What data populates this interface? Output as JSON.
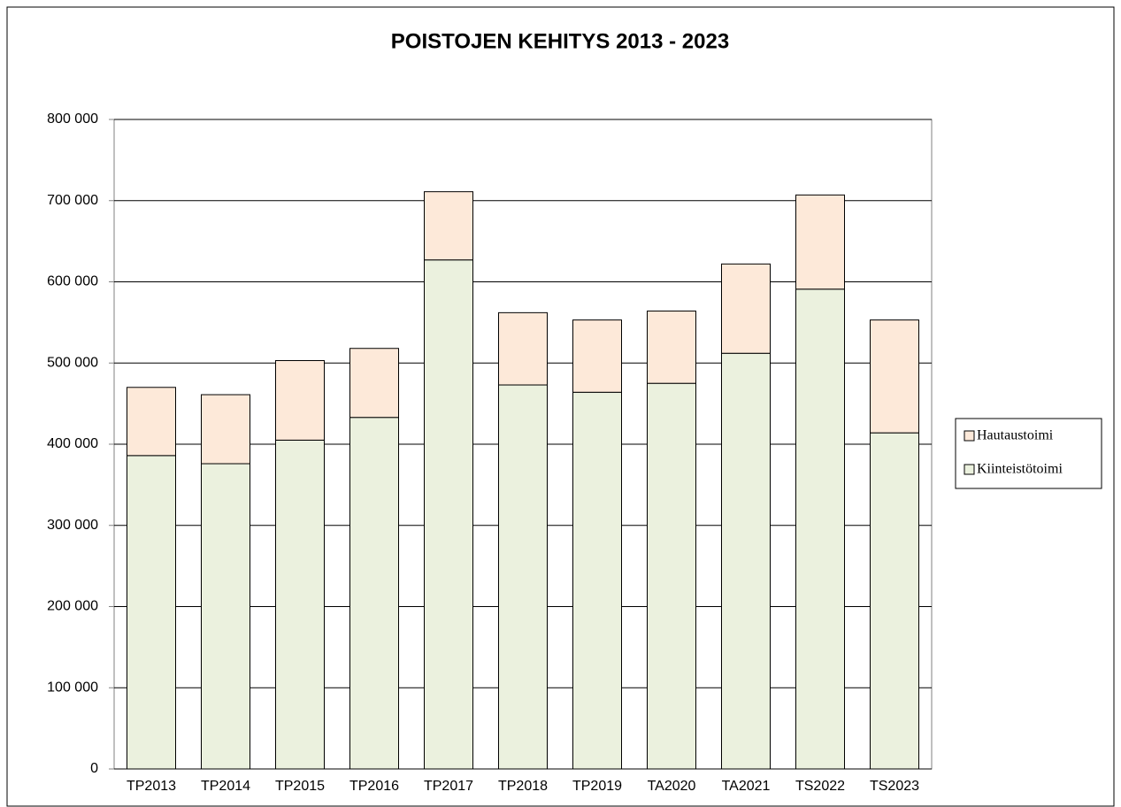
{
  "chart_data": {
    "type": "stacked_bar",
    "title": "POISTOJEN KEHITYS 2013 - 2023",
    "categories": [
      "TP2013",
      "TP2014",
      "TP2015",
      "TP2016",
      "TP2017",
      "TP2018",
      "TP2019",
      "TA2020",
      "TA2021",
      "TS2022",
      "TS2023"
    ],
    "series": [
      {
        "name": "Kiinteistötoimi",
        "color": "#ebf1de",
        "values": [
          386000,
          376000,
          405000,
          433000,
          627000,
          473000,
          464000,
          475000,
          512000,
          591000,
          414000
        ]
      },
      {
        "name": "Hautaustoimi",
        "color": "#fde9d9",
        "values": [
          84000,
          85000,
          98000,
          85000,
          84000,
          89000,
          89000,
          89000,
          110000,
          116000,
          139000
        ]
      }
    ],
    "ylim": [
      0,
      800000
    ],
    "yticks": [
      0,
      {
        "value": 100000,
        "label": "100 000"
      },
      {
        "value": 200000,
        "label": "200 000"
      },
      {
        "value": 300000,
        "label": "300 000"
      },
      {
        "value": 400000,
        "label": "400 000"
      },
      {
        "value": 500000,
        "label": "500 000"
      },
      {
        "value": 600000,
        "label": "600 000"
      },
      {
        "value": 700000,
        "label": "700 000"
      },
      {
        "value": 800000,
        "label": "800 000"
      }
    ],
    "grid": true,
    "legend": "right"
  }
}
